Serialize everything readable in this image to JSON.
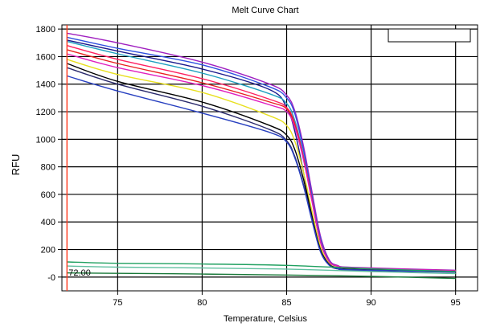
{
  "chart_data": {
    "type": "line",
    "title": "Melt Curve Chart",
    "xlabel": "Temperature, Celsius",
    "ylabel": "RFU",
    "xlim": [
      71.7,
      96.3
    ],
    "ylim": [
      -100,
      1830
    ],
    "xticks": [
      75,
      80,
      85,
      90,
      95
    ],
    "yticks": [
      0,
      200,
      400,
      600,
      800,
      1000,
      1200,
      1400,
      1600,
      1800
    ],
    "ytick_labels": [
      "-0",
      "200",
      "400",
      "600",
      "800",
      "1000",
      "1200",
      "1400",
      "1600",
      "1800"
    ],
    "grid": true,
    "threshold_line": {
      "x": 72.0,
      "label": "72.00",
      "color": "#ff3b1f"
    },
    "legend_box": "top-right",
    "series": [
      {
        "color": "#a020c0",
        "x": [
          72,
          75,
          80,
          84,
          85,
          85.5,
          86,
          86.5,
          87,
          87.5,
          88,
          89,
          95
        ],
        "y": [
          1770,
          1700,
          1560,
          1400,
          1320,
          1200,
          950,
          620,
          300,
          130,
          85,
          70,
          50
        ]
      },
      {
        "color": "#3050e0",
        "x": [
          72,
          75,
          80,
          84,
          85,
          85.5,
          86,
          86.5,
          87,
          87.5,
          88,
          89,
          95
        ],
        "y": [
          1740,
          1660,
          1540,
          1380,
          1300,
          1180,
          920,
          590,
          280,
          120,
          80,
          65,
          45
        ]
      },
      {
        "color": "#1a1a8c",
        "x": [
          72,
          75,
          80,
          84,
          85,
          85.5,
          86,
          86.5,
          87,
          87.5,
          88,
          89,
          95
        ],
        "y": [
          1720,
          1640,
          1510,
          1360,
          1230,
          1050,
          760,
          450,
          200,
          90,
          60,
          50,
          35
        ]
      },
      {
        "color": "#20a0c0",
        "x": [
          72,
          75,
          80,
          84,
          85,
          85.5,
          86,
          86.5,
          87,
          87.5,
          88,
          89,
          95
        ],
        "y": [
          1710,
          1620,
          1480,
          1330,
          1260,
          1130,
          880,
          560,
          260,
          115,
          78,
          63,
          44
        ]
      },
      {
        "color": "#ff2060",
        "x": [
          72,
          75,
          80,
          84,
          85,
          85.5,
          86,
          86.5,
          87,
          87.5,
          88,
          89,
          95
        ],
        "y": [
          1680,
          1580,
          1440,
          1290,
          1230,
          1110,
          870,
          560,
          260,
          115,
          80,
          65,
          45
        ]
      },
      {
        "color": "#e82020",
        "x": [
          72,
          75,
          80,
          84,
          85,
          85.5,
          86,
          86.5,
          87,
          87.5,
          88,
          89,
          95
        ],
        "y": [
          1650,
          1550,
          1410,
          1270,
          1220,
          1100,
          860,
          560,
          255,
          115,
          80,
          65,
          46
        ]
      },
      {
        "color": "#e020c0",
        "x": [
          72,
          75,
          80,
          84,
          85,
          85.5,
          86,
          86.5,
          87,
          87.5,
          88,
          89,
          95
        ],
        "y": [
          1620,
          1520,
          1390,
          1250,
          1200,
          1080,
          850,
          550,
          255,
          115,
          80,
          66,
          46
        ]
      },
      {
        "color": "#e8e020",
        "x": [
          72,
          75,
          80,
          84,
          85,
          85.5,
          86,
          86.5,
          87,
          87.5,
          88,
          89,
          95
        ],
        "y": [
          1580,
          1470,
          1340,
          1170,
          1100,
          980,
          760,
          480,
          220,
          100,
          70,
          58,
          40
        ]
      },
      {
        "color": "#000000",
        "x": [
          72,
          75,
          80,
          84,
          85,
          85.5,
          86,
          86.5,
          87,
          87.5,
          88,
          89,
          95
        ],
        "y": [
          1550,
          1420,
          1270,
          1100,
          1030,
          920,
          710,
          440,
          200,
          95,
          68,
          56,
          40
        ]
      },
      {
        "color": "#2a2a6c",
        "x": [
          72,
          75,
          80,
          84,
          85,
          85.5,
          86,
          86.5,
          87,
          87.5,
          88,
          89,
          95
        ],
        "y": [
          1520,
          1400,
          1240,
          1070,
          990,
          870,
          670,
          420,
          190,
          90,
          65,
          54,
          38
        ]
      },
      {
        "color": "#2840c0",
        "x": [
          72,
          75,
          80,
          84,
          85,
          85.5,
          86,
          86.5,
          87,
          87.5,
          88,
          89,
          95
        ],
        "y": [
          1460,
          1350,
          1190,
          1050,
          980,
          860,
          660,
          410,
          185,
          88,
          63,
          52,
          37
        ]
      },
      {
        "color": "#20a060",
        "x": [
          72,
          75,
          80,
          85,
          90,
          95
        ],
        "y": [
          110,
          100,
          95,
          85,
          60,
          40
        ]
      },
      {
        "color": "#60c0a0",
        "x": [
          72,
          75,
          80,
          85,
          90,
          95
        ],
        "y": [
          80,
          72,
          66,
          58,
          40,
          25
        ]
      },
      {
        "color": "#1a7a3a",
        "x": [
          72,
          75,
          80,
          85,
          90,
          95
        ],
        "y": [
          30,
          27,
          22,
          15,
          5,
          -10
        ]
      }
    ]
  }
}
